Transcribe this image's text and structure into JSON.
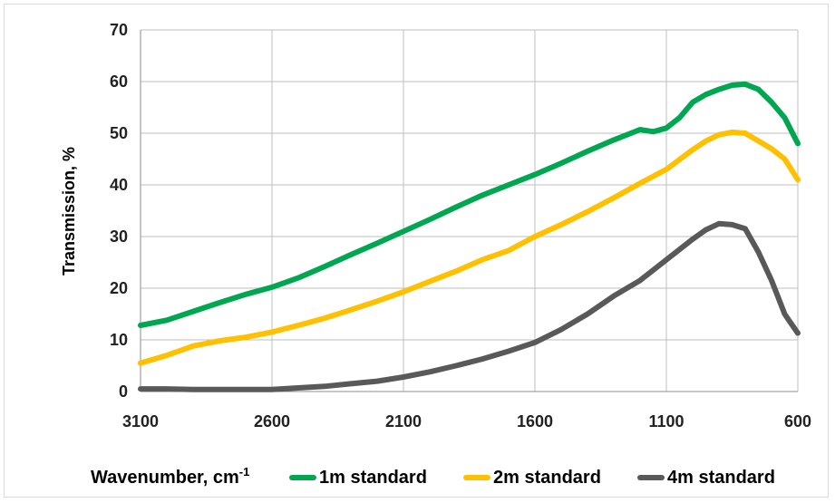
{
  "chart_data": {
    "type": "line",
    "xlabel": "Wavenumber, cm",
    "xlabel_superscript": "-1",
    "ylabel": "Transmission, %",
    "xlim": [
      3100,
      600
    ],
    "x_reversed": true,
    "ylim": [
      0,
      70
    ],
    "x_ticks": [
      "3100",
      "2600",
      "2100",
      "1600",
      "1100",
      "600"
    ],
    "y_ticks": [
      "0",
      "10",
      "20",
      "30",
      "40",
      "50",
      "60",
      "70"
    ],
    "grid": true,
    "legend_position": "bottom",
    "series": [
      {
        "name": "1m standard",
        "color": "#00a650",
        "x": [
          3100,
          3000,
          2900,
          2800,
          2700,
          2600,
          2500,
          2400,
          2300,
          2200,
          2100,
          2000,
          1900,
          1800,
          1700,
          1600,
          1500,
          1400,
          1300,
          1200,
          1150,
          1100,
          1050,
          1000,
          950,
          900,
          850,
          800,
          750,
          700,
          650,
          600
        ],
        "y": [
          12.8,
          13.8,
          15.5,
          17.2,
          18.8,
          20.2,
          22.0,
          24.2,
          26.5,
          28.7,
          31.0,
          33.3,
          35.7,
          38.0,
          40.0,
          42.0,
          44.2,
          46.5,
          48.7,
          50.7,
          50.3,
          51.0,
          53.0,
          56.0,
          57.5,
          58.5,
          59.3,
          59.5,
          58.5,
          56.0,
          53.0,
          48.0
        ]
      },
      {
        "name": "2m standard",
        "color": "#ffc000",
        "x": [
          3100,
          3000,
          2900,
          2800,
          2700,
          2600,
          2500,
          2400,
          2300,
          2200,
          2100,
          2000,
          1900,
          1800,
          1700,
          1600,
          1500,
          1400,
          1300,
          1200,
          1100,
          1000,
          950,
          900,
          850,
          800,
          750,
          700,
          650,
          600
        ],
        "y": [
          5.5,
          7.0,
          8.8,
          9.8,
          10.5,
          11.5,
          12.8,
          14.2,
          15.8,
          17.5,
          19.3,
          21.3,
          23.3,
          25.5,
          27.3,
          30.0,
          32.3,
          34.8,
          37.5,
          40.3,
          43.0,
          46.8,
          48.5,
          49.7,
          50.2,
          50.0,
          48.5,
          47.0,
          45.0,
          41.0
        ]
      },
      {
        "name": "4m standard",
        "color": "#595959",
        "x": [
          3100,
          3000,
          2900,
          2800,
          2700,
          2600,
          2500,
          2400,
          2300,
          2200,
          2100,
          2000,
          1900,
          1800,
          1700,
          1600,
          1500,
          1400,
          1300,
          1200,
          1100,
          1000,
          950,
          900,
          850,
          800,
          750,
          700,
          650,
          630,
          600
        ],
        "y": [
          0.5,
          0.5,
          0.4,
          0.4,
          0.4,
          0.4,
          0.7,
          1.0,
          1.5,
          2.0,
          2.8,
          3.8,
          5.0,
          6.3,
          7.8,
          9.5,
          12.0,
          15.0,
          18.5,
          21.5,
          25.5,
          29.5,
          31.3,
          32.5,
          32.3,
          31.5,
          27.0,
          21.5,
          15.0,
          13.5,
          11.3
        ]
      }
    ]
  }
}
